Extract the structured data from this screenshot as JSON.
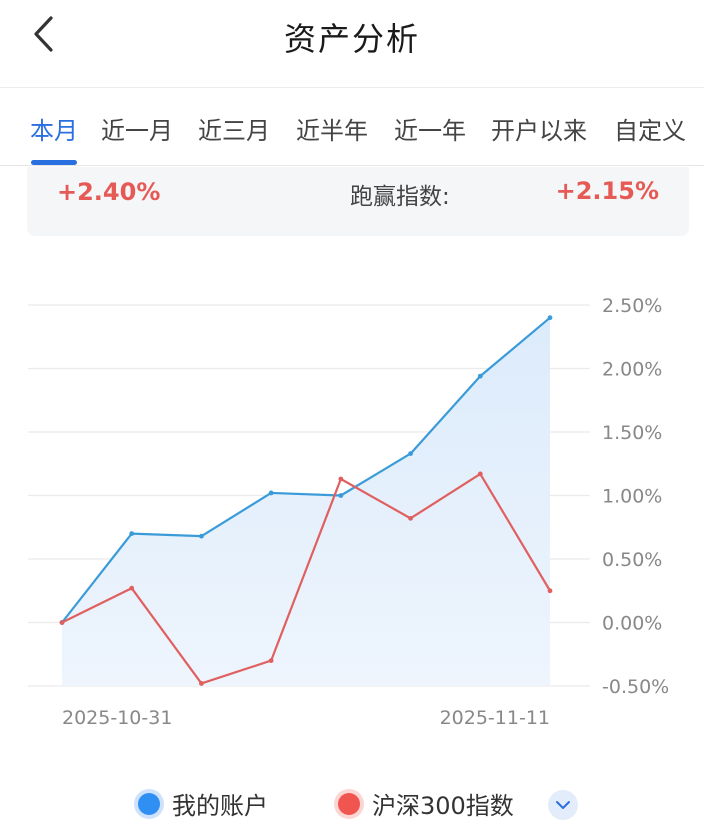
{
  "header": {
    "title": "资产分析",
    "back_icon": "chevron-left-icon"
  },
  "tabs": [
    {
      "label": "本月",
      "active": true
    },
    {
      "label": "近一月",
      "active": false
    },
    {
      "label": "近三月",
      "active": false
    },
    {
      "label": "近半年",
      "active": false
    },
    {
      "label": "近一年",
      "active": false
    },
    {
      "label": "开户以来",
      "active": false
    },
    {
      "label": "自定义",
      "active": false
    }
  ],
  "summary": {
    "account_return": "+2.40%",
    "beat_index_label": "跑赢指数:",
    "beat_index_value": "+2.15%"
  },
  "colors": {
    "accent": "#2a6fe0",
    "account_line": "#3a9bd8",
    "index_line": "#e06060",
    "positive": "#e65a55"
  },
  "legend": {
    "account_label": "我的账户",
    "index_label": "沪深300指数",
    "expand_icon": "chevron-down-icon"
  },
  "chart_data": {
    "type": "line",
    "x_start_label": "2025-10-31",
    "x_end_label": "2025-11-11",
    "ylim": [
      -0.5,
      2.5
    ],
    "yticks": [
      "2.50%",
      "2.00%",
      "1.50%",
      "1.00%",
      "0.50%",
      "0.00%",
      "-0.50%"
    ],
    "grid": true,
    "legend_position": "bottom",
    "series": [
      {
        "name": "我的账户",
        "values": [
          0.0,
          0.7,
          0.68,
          1.02,
          1.0,
          1.33,
          1.94,
          2.4
        ],
        "area_fill": true
      },
      {
        "name": "沪深300指数",
        "values": [
          0.0,
          0.27,
          -0.48,
          -0.3,
          1.13,
          0.82,
          1.17,
          0.25
        ]
      }
    ]
  }
}
